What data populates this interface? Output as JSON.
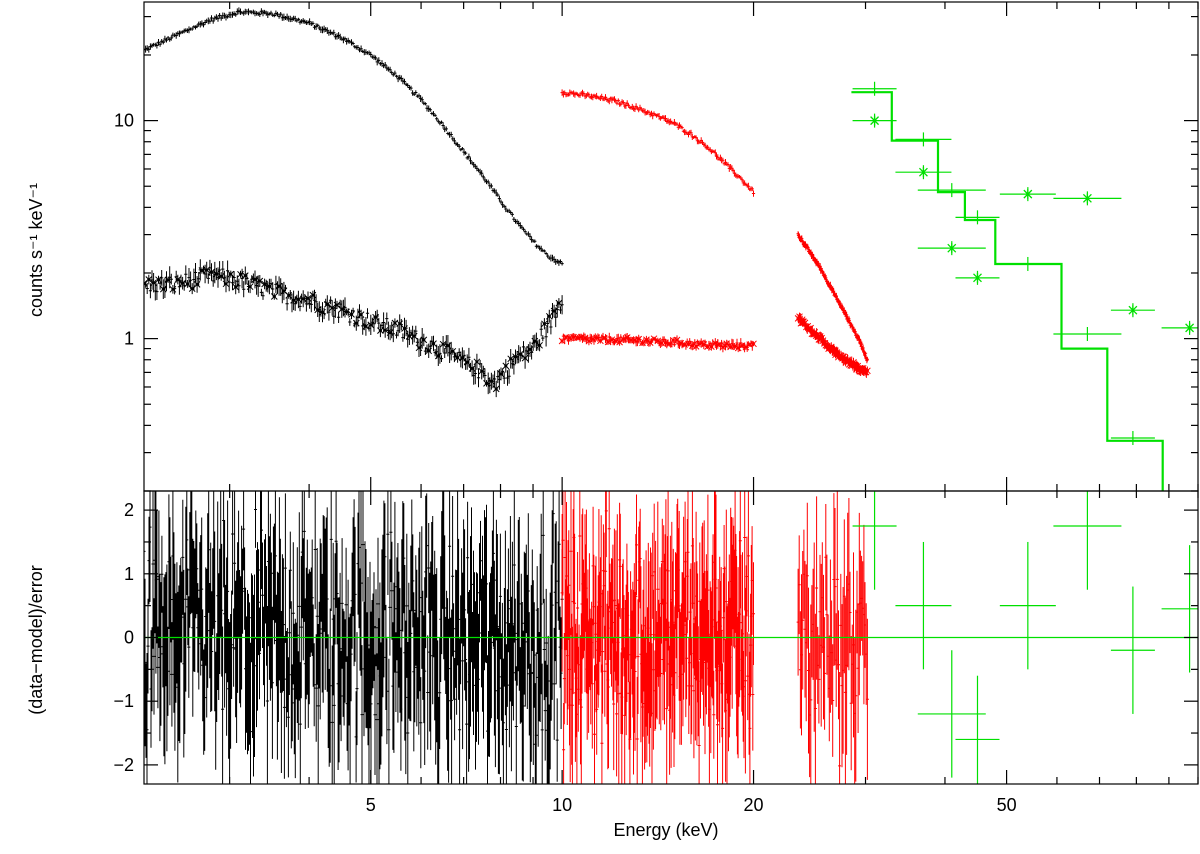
{
  "chart_data": [
    {
      "type": "scatter",
      "panel": "spectrum",
      "ylabel": "counts s⁻¹ keV⁻¹",
      "yscale": "log",
      "xscale": "log",
      "xlim": [
        2.2,
        100
      ],
      "ylim": [
        0.2,
        35
      ],
      "yticks": [
        {
          "value": 1,
          "label": "1"
        },
        {
          "value": 10,
          "label": "10"
        }
      ],
      "colors": {
        "black": "#000000",
        "red": "#ff0000",
        "green": "#00e000"
      },
      "series": [
        {
          "color": "black",
          "points": [
            [
              2.2,
              21
            ],
            [
              2.5,
              25
            ],
            [
              2.8,
              29
            ],
            [
              3.1,
              31.5
            ],
            [
              3.5,
              31
            ],
            [
              4.0,
              28
            ],
            [
              4.5,
              24
            ],
            [
              5.0,
              20
            ],
            [
              5.5,
              16
            ],
            [
              6.0,
              12.5
            ],
            [
              6.5,
              9.5
            ],
            [
              7.0,
              7.2
            ],
            [
              7.5,
              5.6
            ],
            [
              8.0,
              4.3
            ],
            [
              8.5,
              3.4
            ],
            [
              9.0,
              2.8
            ],
            [
              9.5,
              2.4
            ],
            [
              10.0,
              2.2
            ]
          ]
        },
        {
          "color": "black",
          "points": [
            [
              2.2,
              1.75
            ],
            [
              2.5,
              1.8
            ],
            [
              2.8,
              1.95
            ],
            [
              3.0,
              1.9
            ],
            [
              3.5,
              1.65
            ],
            [
              4.0,
              1.5
            ],
            [
              4.5,
              1.35
            ],
            [
              5.0,
              1.2
            ],
            [
              5.5,
              1.1
            ],
            [
              6.0,
              0.98
            ],
            [
              6.5,
              0.88
            ],
            [
              7.0,
              0.78
            ],
            [
              7.5,
              0.7
            ],
            [
              7.8,
              0.62
            ],
            [
              8.2,
              0.72
            ],
            [
              8.5,
              0.82
            ],
            [
              9.0,
              0.9
            ],
            [
              9.5,
              1.15
            ],
            [
              10.0,
              1.5
            ]
          ]
        },
        {
          "color": "red",
          "points": [
            [
              10.0,
              13.5
            ],
            [
              11,
              13.0
            ],
            [
              12,
              12.4
            ],
            [
              13,
              11.5
            ],
            [
              14,
              10.6
            ],
            [
              15,
              9.7
            ],
            [
              16,
              8.6
            ],
            [
              17,
              7.5
            ],
            [
              18,
              6.4
            ],
            [
              19,
              5.5
            ],
            [
              20,
              4.7
            ]
          ]
        },
        {
          "color": "red",
          "points": [
            [
              10.0,
              1.0
            ],
            [
              12,
              0.99
            ],
            [
              14,
              0.97
            ],
            [
              16,
              0.95
            ],
            [
              18,
              0.93
            ],
            [
              20,
              0.93
            ]
          ]
        },
        {
          "color": "red",
          "points": [
            [
              23.5,
              3.0
            ],
            [
              24.5,
              2.5
            ],
            [
              25.5,
              2.1
            ],
            [
              26.5,
              1.7
            ],
            [
              27.5,
              1.4
            ],
            [
              28.5,
              1.15
            ],
            [
              29.5,
              0.95
            ],
            [
              30.2,
              0.8
            ]
          ]
        },
        {
          "color": "red",
          "points": [
            [
              23.5,
              1.25
            ],
            [
              24.5,
              1.1
            ],
            [
              25.5,
              1.0
            ],
            [
              26.5,
              0.9
            ],
            [
              27.5,
              0.82
            ],
            [
              28.5,
              0.77
            ],
            [
              29.5,
              0.72
            ],
            [
              30.2,
              0.7
            ]
          ]
        },
        {
          "color": "green",
          "points": [
            [
              31,
              14
            ],
            [
              37,
              8.2
            ],
            [
              41,
              4.8
            ],
            [
              45,
              3.6
            ],
            [
              54,
              2.2
            ],
            [
              67,
              1.05
            ],
            [
              79,
              0.35
            ],
            [
              97,
              0.17
            ]
          ]
        },
        {
          "color": "green",
          "points": [
            [
              31,
              10
            ],
            [
              37,
              5.8
            ],
            [
              41,
              2.6
            ],
            [
              45,
              1.9
            ],
            [
              54,
              4.6
            ],
            [
              67,
              4.4
            ],
            [
              79,
              1.35
            ],
            [
              97,
              1.12
            ]
          ]
        }
      ],
      "model_steps": [
        {
          "color": "green",
          "points": [
            [
              28.5,
              13.5
            ],
            [
              33,
              13.5
            ],
            [
              33,
              8.1
            ],
            [
              39,
              8.1
            ],
            [
              39,
              4.7
            ],
            [
              43,
              4.7
            ],
            [
              43,
              3.5
            ],
            [
              48,
              3.5
            ],
            [
              48,
              2.2
            ],
            [
              61,
              2.2
            ],
            [
              61,
              0.9
            ],
            [
              72,
              0.9
            ],
            [
              72,
              0.34
            ],
            [
              88,
              0.34
            ],
            [
              88,
              0.15
            ],
            [
              100,
              0.15
            ]
          ]
        }
      ]
    },
    {
      "type": "scatter",
      "panel": "residuals",
      "xlabel": "Energy (keV)",
      "ylabel": "(data−model)/error",
      "xscale": "log",
      "xlim": [
        2.2,
        100
      ],
      "ylim": [
        -2.3,
        2.3
      ],
      "xticks": [
        {
          "value": 5,
          "label": "5"
        },
        {
          "value": 10,
          "label": "10"
        },
        {
          "value": 20,
          "label": "20"
        },
        {
          "value": 50,
          "label": "50"
        }
      ],
      "yticks": [
        {
          "value": -2,
          "label": "−2"
        },
        {
          "value": -1,
          "label": "−1"
        },
        {
          "value": 0,
          "label": "0"
        },
        {
          "value": 1,
          "label": "1"
        },
        {
          "value": 2,
          "label": "2"
        }
      ],
      "zero_line_color": "green",
      "series": [
        {
          "color": "green",
          "points": [
            [
              31,
              1.75
            ],
            [
              37,
              0.5
            ],
            [
              41,
              -1.2
            ],
            [
              45,
              -1.6
            ],
            [
              54,
              0.5
            ],
            [
              67,
              1.75
            ],
            [
              79,
              -0.2
            ],
            [
              97,
              0.45
            ]
          ]
        }
      ],
      "noise_ranges": [
        {
          "color": "black",
          "from": 2.2,
          "to": 10.0
        },
        {
          "color": "red",
          "from": 10.0,
          "to": 20.0
        },
        {
          "color": "red",
          "from": 23.5,
          "to": 30.2
        }
      ]
    }
  ]
}
